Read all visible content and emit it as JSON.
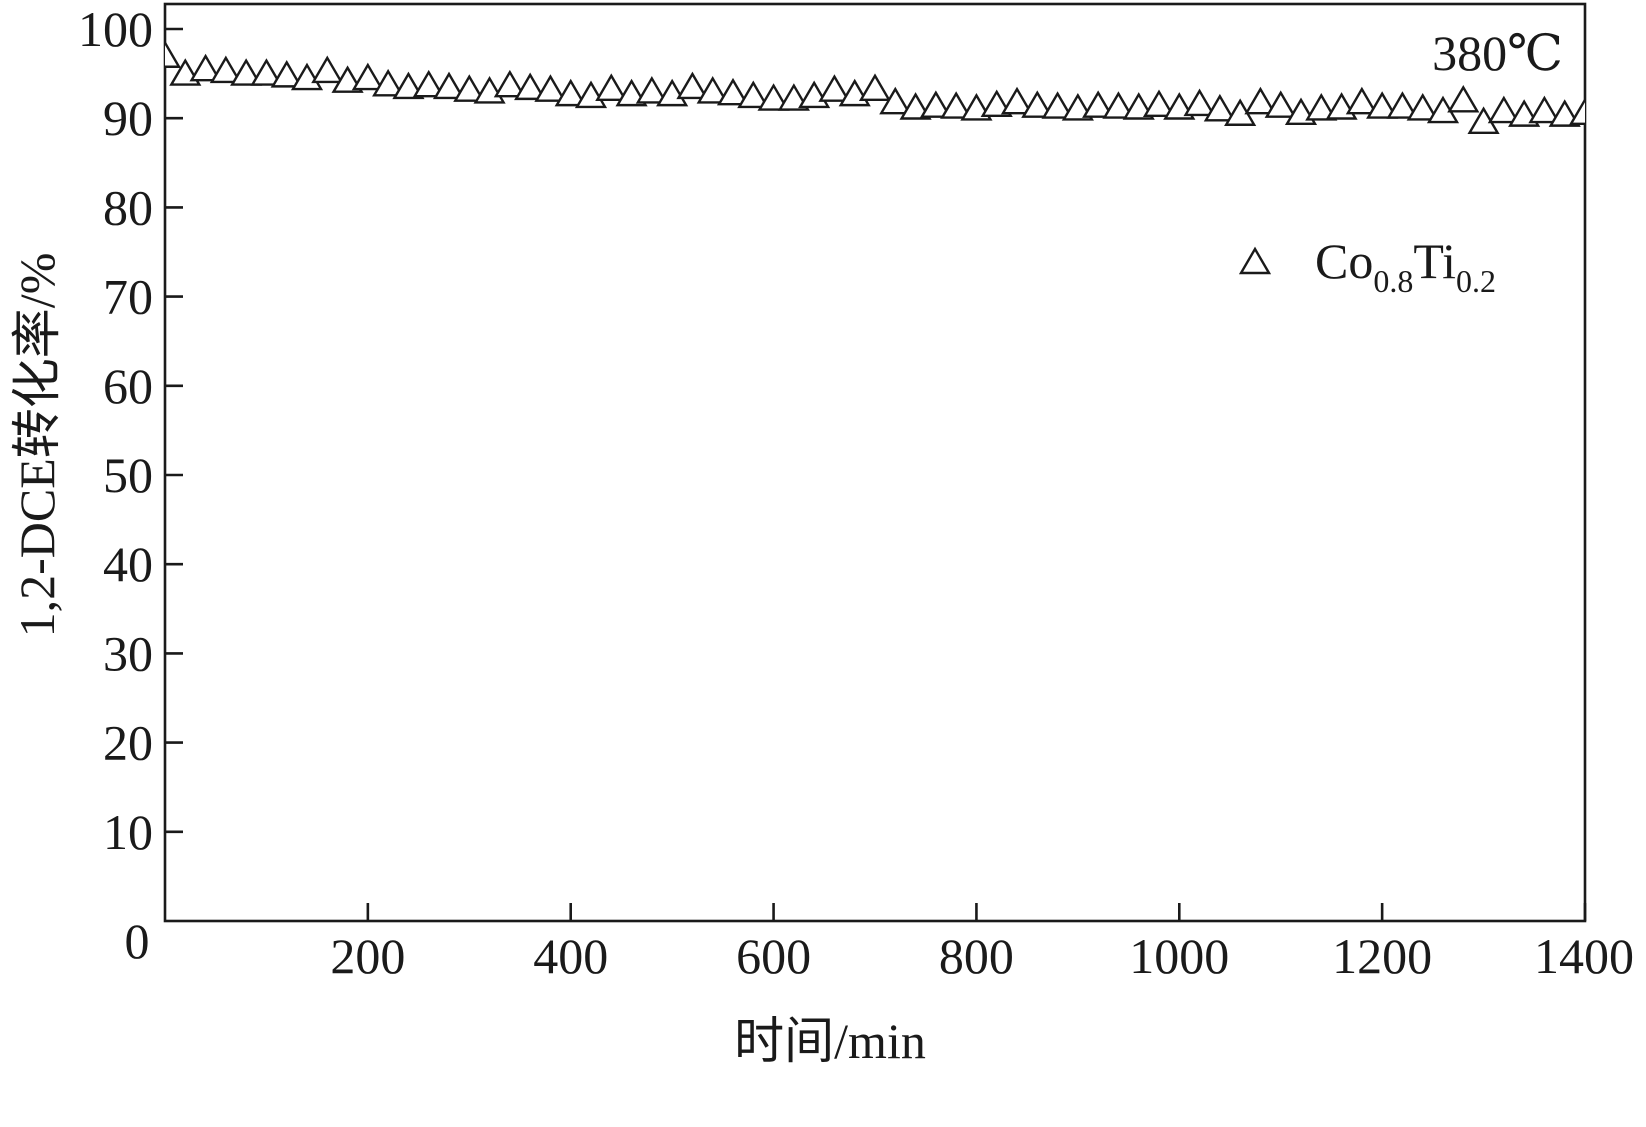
{
  "chart_data": {
    "type": "scatter",
    "title": "",
    "xlabel": "时间/min",
    "ylabel": "1,2-DCE转化率/%",
    "xlim": [
      0,
      1400
    ],
    "ylim": [
      0,
      100
    ],
    "grid": false,
    "origin_label": "0",
    "xticks": [
      200,
      400,
      600,
      800,
      1000,
      1200,
      1400
    ],
    "yticks": [
      10,
      20,
      30,
      40,
      50,
      60,
      70,
      80,
      90,
      100
    ],
    "legend_position": "upper-right",
    "x": [
      0,
      20,
      40,
      60,
      80,
      100,
      120,
      140,
      160,
      180,
      200,
      220,
      240,
      260,
      280,
      300,
      320,
      340,
      360,
      380,
      400,
      420,
      440,
      460,
      480,
      500,
      520,
      540,
      560,
      580,
      600,
      620,
      640,
      660,
      680,
      700,
      720,
      740,
      760,
      780,
      800,
      820,
      840,
      860,
      880,
      900,
      920,
      940,
      960,
      980,
      1000,
      1020,
      1040,
      1060,
      1080,
      1100,
      1120,
      1140,
      1160,
      1180,
      1200,
      1220,
      1240,
      1260,
      1280,
      1300,
      1320,
      1340,
      1360,
      1380,
      1400
    ],
    "series": [
      {
        "name": "Co0.8Ti0.2",
        "marker": "open-triangle",
        "color": "#1a1a1a",
        "values": [
          97.0,
          95.0,
          95.5,
          95.3,
          95.0,
          95.0,
          94.8,
          94.5,
          95.3,
          94.2,
          94.5,
          93.8,
          93.5,
          93.7,
          93.5,
          93.2,
          93.0,
          93.7,
          93.4,
          93.2,
          92.7,
          92.5,
          93.3,
          92.7,
          93.0,
          92.7,
          93.5,
          93.0,
          92.8,
          92.5,
          92.2,
          92.2,
          92.5,
          93.2,
          92.7,
          93.3,
          91.8,
          91.2,
          91.4,
          91.3,
          91.1,
          91.5,
          91.8,
          91.4,
          91.3,
          91.1,
          91.4,
          91.3,
          91.2,
          91.5,
          91.2,
          91.6,
          91.0,
          90.5,
          91.8,
          91.4,
          90.6,
          91.1,
          91.2,
          91.8,
          91.3,
          91.3,
          91.1,
          90.8,
          92.0,
          89.6,
          90.8,
          90.4,
          90.8,
          90.4,
          90.6
        ]
      }
    ],
    "annotations": [
      {
        "text": "380℃",
        "position": "top-right"
      }
    ]
  }
}
